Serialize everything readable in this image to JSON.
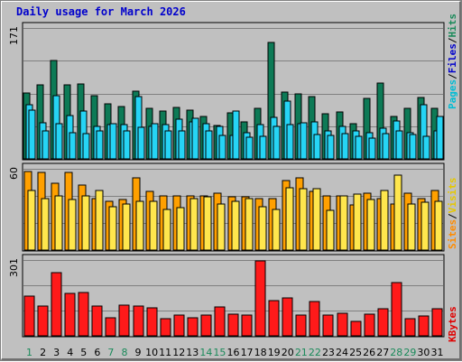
{
  "title": "Daily usage for March 2026",
  "colors": {
    "background": "#c0c0c0",
    "panel_border": "#000000",
    "grid": "#808080",
    "hits": "#0d7a56",
    "files": "#26d4f5",
    "pages": "#26d4f5",
    "visits": "#ffa000",
    "sites": "#ffe64d",
    "kbytes": "#ff1a1a",
    "weekday_label": "#000000",
    "weekend_label": "#1a8a5a"
  },
  "right_labels": {
    "top": [
      {
        "text": "Pages",
        "color": "#00bcd4"
      },
      {
        "text": "/",
        "color": "#000000"
      },
      {
        "text": "Files",
        "color": "#0000cc"
      },
      {
        "text": "/",
        "color": "#000000"
      },
      {
        "text": "Hits",
        "color": "#1a8a5a"
      }
    ],
    "middle": [
      {
        "text": "Sites",
        "color": "#ff8c00"
      },
      {
        "text": "/",
        "color": "#000000"
      },
      {
        "text": "Visits",
        "color": "#e6c800"
      }
    ],
    "bottom": [
      {
        "text": "KBytes",
        "color": "#e00000"
      }
    ]
  },
  "chart_data": {
    "type": "bar",
    "title": "Daily usage for March 2026",
    "x": [
      "1",
      "2",
      "3",
      "4",
      "5",
      "6",
      "7",
      "8",
      "9",
      "10",
      "11",
      "12",
      "13",
      "14",
      "15",
      "16",
      "17",
      "18",
      "19",
      "20",
      "21",
      "22",
      "23",
      "24",
      "25",
      "26",
      "27",
      "28",
      "29",
      "30",
      "31"
    ],
    "weekend_days": [
      1,
      7,
      8,
      14,
      15,
      21,
      22,
      28,
      29
    ],
    "panels": [
      {
        "ymax_label": "171",
        "ymax": 171,
        "grid": true,
        "series": [
          {
            "name": "Hits",
            "values": [
              86,
              97,
              128,
              97,
              98,
              82,
              72,
              68,
              89,
              66,
              62,
              67,
              64,
              56,
              44,
              60,
              48,
              66,
              152,
              87,
              85,
              81,
              59,
              61,
              46,
              79,
              99,
              55,
              66,
              80,
              66
            ]
          },
          {
            "name": "Files",
            "values": [
              71,
              47,
              82,
              57,
              63,
              42,
              45,
              45,
              81,
              42,
              45,
              52,
              48,
              46,
              42,
              31,
              34,
              45,
              54,
              76,
              46,
              48,
              36,
              42,
              37,
              34,
              40,
              49,
              34,
              71,
              37
            ]
          },
          {
            "name": "Pages",
            "values": [
              64,
              36,
              46,
              34,
              33,
              36,
              46,
              36,
              41,
              46,
              36,
              37,
              53,
              36,
              31,
              62,
              28,
              30,
              43,
              45,
              47,
              32,
              31,
              33,
              30,
              27,
              33,
              36,
              32,
              29,
              56
            ]
          }
        ]
      },
      {
        "ymax_label": "60",
        "ymax": 60,
        "grid": true,
        "series": [
          {
            "name": "Visits",
            "values": [
              58,
              57,
              49,
              57,
              48,
              38,
              36,
              37,
              53,
              43,
              40,
              40,
              40,
              40,
              42,
              39,
              39,
              38,
              38,
              51,
              53,
              43,
              40,
              40,
              33,
              42,
              38,
              34,
              42,
              38,
              44
            ]
          },
          {
            "name": "Sites",
            "values": [
              44,
              38,
              40,
              37,
              40,
              44,
              32,
              34,
              36,
              36,
              30,
              31,
              38,
              39,
              34,
              36,
              38,
              32,
              30,
              46,
              45,
              45,
              29,
              40,
              41,
              37,
              44,
              55,
              34,
              35,
              36
            ]
          }
        ]
      },
      {
        "ymax_label": "301",
        "ymax": 301,
        "grid": true,
        "series": [
          {
            "name": "KBytes",
            "values": [
              156,
              120,
              252,
              167,
              172,
              119,
              71,
              122,
              120,
              110,
              67,
              83,
              71,
              81,
              116,
              85,
              82,
              297,
              141,
              150,
              82,
              135,
              83,
              89,
              57,
              86,
              106,
              210,
              69,
              80,
              107
            ]
          }
        ]
      }
    ]
  }
}
